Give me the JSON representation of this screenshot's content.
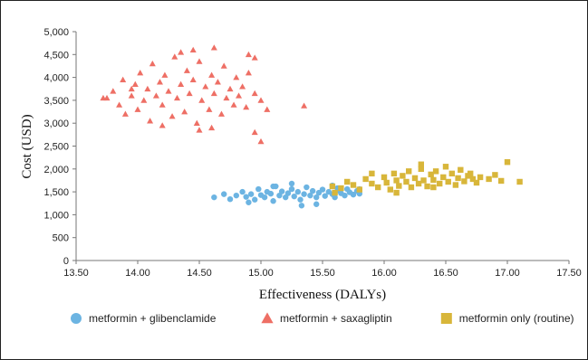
{
  "chart_data": {
    "type": "scatter",
    "xlabel": "Effectiveness (DALYs)",
    "ylabel": "Cost (USD)",
    "xlim": [
      13.5,
      17.5
    ],
    "ylim": [
      0,
      5000
    ],
    "x_ticks": [
      "13.50",
      "14.00",
      "14.50",
      "15.00",
      "15.50",
      "16.00",
      "16.50",
      "17.00",
      "17.50"
    ],
    "y_ticks": [
      "0",
      "500",
      "1,000",
      "1,500",
      "2,000",
      "2,500",
      "3,000",
      "3,500",
      "4,000",
      "4,500",
      "5,000"
    ],
    "grid": false,
    "legend_position": "bottom",
    "series": [
      {
        "name": "metformin + glibenclamide",
        "marker": "circle",
        "color": "#6cb4e2",
        "points": [
          [
            14.62,
            1380
          ],
          [
            14.7,
            1450
          ],
          [
            14.75,
            1340
          ],
          [
            14.8,
            1420
          ],
          [
            14.85,
            1500
          ],
          [
            14.88,
            1390
          ],
          [
            14.92,
            1450
          ],
          [
            14.95,
            1330
          ],
          [
            14.98,
            1560
          ],
          [
            15.0,
            1430
          ],
          [
            15.03,
            1380
          ],
          [
            15.05,
            1500
          ],
          [
            15.08,
            1460
          ],
          [
            15.1,
            1300
          ],
          [
            15.12,
            1620
          ],
          [
            15.15,
            1420
          ],
          [
            15.17,
            1510
          ],
          [
            15.2,
            1380
          ],
          [
            15.22,
            1470
          ],
          [
            15.25,
            1560
          ],
          [
            15.27,
            1400
          ],
          [
            15.3,
            1500
          ],
          [
            15.32,
            1330
          ],
          [
            15.35,
            1450
          ],
          [
            15.37,
            1600
          ],
          [
            15.4,
            1420
          ],
          [
            15.42,
            1520
          ],
          [
            15.45,
            1380
          ],
          [
            15.47,
            1480
          ],
          [
            15.5,
            1550
          ],
          [
            15.52,
            1410
          ],
          [
            15.55,
            1500
          ],
          [
            15.58,
            1450
          ],
          [
            15.6,
            1380
          ],
          [
            15.63,
            1530
          ],
          [
            15.65,
            1470
          ],
          [
            15.68,
            1420
          ],
          [
            15.7,
            1560
          ],
          [
            15.72,
            1490
          ],
          [
            15.75,
            1440
          ],
          [
            15.78,
            1520
          ],
          [
            15.8,
            1460
          ],
          [
            14.9,
            1270
          ],
          [
            15.1,
            1620
          ],
          [
            15.33,
            1200
          ],
          [
            15.58,
            1640
          ],
          [
            15.45,
            1230
          ],
          [
            15.25,
            1680
          ],
          [
            15.62,
            1580
          ],
          [
            15.8,
            1560
          ]
        ]
      },
      {
        "name": "metformin + saxagliptin",
        "marker": "triangle",
        "color": "#ee6f65",
        "points": [
          [
            13.72,
            3550
          ],
          [
            13.8,
            3700
          ],
          [
            13.85,
            3400
          ],
          [
            13.88,
            3950
          ],
          [
            13.9,
            3200
          ],
          [
            13.95,
            3600
          ],
          [
            13.98,
            3850
          ],
          [
            14.0,
            3300
          ],
          [
            14.02,
            4100
          ],
          [
            14.05,
            3500
          ],
          [
            14.08,
            3750
          ],
          [
            14.1,
            3050
          ],
          [
            14.12,
            4300
          ],
          [
            14.15,
            3600
          ],
          [
            14.18,
            3900
          ],
          [
            14.2,
            3400
          ],
          [
            14.22,
            4050
          ],
          [
            14.25,
            3700
          ],
          [
            14.28,
            3150
          ],
          [
            14.3,
            4450
          ],
          [
            14.32,
            3550
          ],
          [
            14.35,
            3850
          ],
          [
            14.38,
            3250
          ],
          [
            14.4,
            4150
          ],
          [
            14.42,
            3650
          ],
          [
            14.45,
            3950
          ],
          [
            14.48,
            3000
          ],
          [
            14.5,
            4350
          ],
          [
            14.52,
            3500
          ],
          [
            14.55,
            3800
          ],
          [
            14.58,
            3300
          ],
          [
            14.6,
            4050
          ],
          [
            14.62,
            3650
          ],
          [
            14.65,
            3900
          ],
          [
            14.68,
            3200
          ],
          [
            14.7,
            4250
          ],
          [
            14.72,
            3550
          ],
          [
            14.75,
            3750
          ],
          [
            14.78,
            3400
          ],
          [
            14.8,
            4000
          ],
          [
            14.82,
            3600
          ],
          [
            14.85,
            3800
          ],
          [
            14.88,
            3350
          ],
          [
            14.9,
            4100
          ],
          [
            14.95,
            3650
          ],
          [
            15.0,
            3500
          ],
          [
            15.05,
            3300
          ],
          [
            15.35,
            3380
          ],
          [
            14.45,
            4600
          ],
          [
            14.35,
            4550
          ],
          [
            14.62,
            4650
          ],
          [
            14.9,
            4500
          ],
          [
            14.95,
            4430
          ],
          [
            14.6,
            2900
          ],
          [
            14.95,
            2800
          ],
          [
            15.0,
            2600
          ],
          [
            14.5,
            2850
          ],
          [
            14.2,
            2950
          ],
          [
            13.75,
            3550
          ],
          [
            13.95,
            3750
          ]
        ]
      },
      {
        "name": "metformin only (routine)",
        "marker": "square",
        "color": "#d8b63a",
        "points": [
          [
            15.58,
            1620
          ],
          [
            15.65,
            1580
          ],
          [
            15.7,
            1720
          ],
          [
            15.75,
            1650
          ],
          [
            15.8,
            1550
          ],
          [
            15.85,
            1780
          ],
          [
            15.9,
            1680
          ],
          [
            15.95,
            1600
          ],
          [
            16.0,
            1820
          ],
          [
            16.02,
            1700
          ],
          [
            16.05,
            1550
          ],
          [
            16.08,
            1900
          ],
          [
            16.1,
            1750
          ],
          [
            16.12,
            1630
          ],
          [
            16.15,
            1850
          ],
          [
            16.18,
            1720
          ],
          [
            16.2,
            1950
          ],
          [
            16.22,
            1600
          ],
          [
            16.25,
            1800
          ],
          [
            16.28,
            1680
          ],
          [
            16.3,
            2000
          ],
          [
            16.32,
            1750
          ],
          [
            16.35,
            1620
          ],
          [
            16.38,
            1880
          ],
          [
            16.4,
            1760
          ],
          [
            16.42,
            1950
          ],
          [
            16.45,
            1680
          ],
          [
            16.48,
            1820
          ],
          [
            16.5,
            2050
          ],
          [
            16.52,
            1720
          ],
          [
            16.55,
            1900
          ],
          [
            16.58,
            1650
          ],
          [
            16.6,
            1800
          ],
          [
            16.62,
            1980
          ],
          [
            16.65,
            1730
          ],
          [
            16.68,
            1850
          ],
          [
            16.7,
            1900
          ],
          [
            16.72,
            1780
          ],
          [
            16.75,
            1700
          ],
          [
            16.78,
            1820
          ],
          [
            16.85,
            1780
          ],
          [
            16.9,
            1870
          ],
          [
            16.95,
            1740
          ],
          [
            17.0,
            2150
          ],
          [
            17.1,
            1720
          ],
          [
            16.1,
            1480
          ],
          [
            16.4,
            1600
          ],
          [
            16.3,
            2100
          ],
          [
            15.6,
            1480
          ],
          [
            15.9,
            1900
          ]
        ]
      }
    ]
  }
}
